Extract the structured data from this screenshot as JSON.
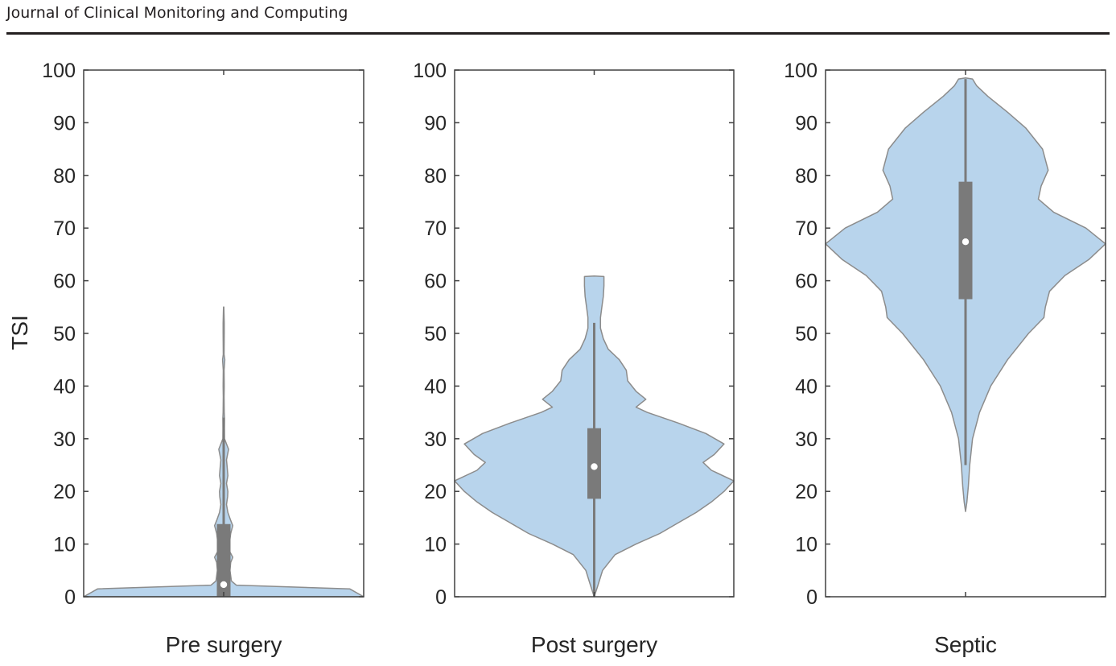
{
  "header": {
    "journal_name": "Journal of Clinical Monitoring and Computing"
  },
  "chart_data": {
    "type": "violin",
    "ylabel": "TSI",
    "ylim": [
      0,
      100
    ],
    "yticks": [
      0,
      10,
      20,
      30,
      40,
      50,
      60,
      70,
      80,
      90,
      100
    ],
    "grid": false,
    "colors": {
      "violin_fill": "#b8d4ec",
      "violin_edge": "#8c8c8c",
      "box": "#7a7a7a",
      "whisker": "#7a7a7a",
      "median_dot": "#ffffff",
      "axes": "#404040"
    },
    "groups": [
      {
        "name": "Pre surgery",
        "median": 2.3,
        "q1": 0,
        "q3": 13.8,
        "whisker_low": 0,
        "whisker_high": 34,
        "density": [
          [
            0,
            1.0
          ],
          [
            1.5,
            0.9
          ],
          [
            2.2,
            0.09
          ],
          [
            3,
            0.055
          ],
          [
            5,
            0.045
          ],
          [
            6.5,
            0.05
          ],
          [
            7.5,
            0.065
          ],
          [
            8.5,
            0.045
          ],
          [
            10,
            0.04
          ],
          [
            12,
            0.05
          ],
          [
            13.5,
            0.065
          ],
          [
            14.5,
            0.05
          ],
          [
            16,
            0.03
          ],
          [
            17.5,
            0.02
          ],
          [
            19,
            0.028
          ],
          [
            20,
            0.03
          ],
          [
            21.5,
            0.02
          ],
          [
            23,
            0.03
          ],
          [
            24.5,
            0.025
          ],
          [
            26,
            0.02
          ],
          [
            28,
            0.035
          ],
          [
            29,
            0.02
          ],
          [
            30,
            0.006
          ],
          [
            32,
            0.005
          ],
          [
            34,
            0.006
          ],
          [
            35,
            0.004
          ],
          [
            38,
            0.003
          ],
          [
            40,
            0.004
          ],
          [
            43,
            0.003
          ],
          [
            45,
            0.008
          ],
          [
            46,
            0.003
          ],
          [
            50,
            0.004
          ],
          [
            52,
            0.004
          ],
          [
            55,
            0.001
          ]
        ]
      },
      {
        "name": "Post surgery",
        "median": 24.7,
        "q1": 18.6,
        "q3": 32,
        "whisker_low": 0,
        "whisker_high": 52,
        "density": [
          [
            0,
            0.0
          ],
          [
            2,
            0.025
          ],
          [
            5,
            0.06
          ],
          [
            8,
            0.15
          ],
          [
            10,
            0.3
          ],
          [
            12,
            0.47
          ],
          [
            14,
            0.6
          ],
          [
            16,
            0.73
          ],
          [
            18,
            0.84
          ],
          [
            20,
            0.93
          ],
          [
            22,
            1.0
          ],
          [
            24,
            0.84
          ],
          [
            25.5,
            0.78
          ],
          [
            27,
            0.86
          ],
          [
            29,
            0.93
          ],
          [
            31,
            0.8
          ],
          [
            33,
            0.6
          ],
          [
            35,
            0.38
          ],
          [
            36,
            0.3
          ],
          [
            37.5,
            0.37
          ],
          [
            39,
            0.3
          ],
          [
            41,
            0.24
          ],
          [
            43,
            0.23
          ],
          [
            45,
            0.18
          ],
          [
            47,
            0.1
          ],
          [
            49,
            0.065
          ],
          [
            51,
            0.045
          ],
          [
            53,
            0.045
          ],
          [
            55,
            0.055
          ],
          [
            57,
            0.065
          ],
          [
            59,
            0.07
          ],
          [
            60.8,
            0.07
          ],
          [
            60.9,
            0.0
          ]
        ]
      },
      {
        "name": "Septic",
        "median": 67.4,
        "q1": 56.5,
        "q3": 78.8,
        "whisker_low": 25,
        "whisker_high": 98.3,
        "density": [
          [
            16.2,
            0.0
          ],
          [
            18,
            0.01
          ],
          [
            21,
            0.02
          ],
          [
            25,
            0.03
          ],
          [
            30,
            0.05
          ],
          [
            35,
            0.1
          ],
          [
            40,
            0.18
          ],
          [
            45,
            0.3
          ],
          [
            50,
            0.45
          ],
          [
            53,
            0.56
          ],
          [
            55,
            0.57
          ],
          [
            58,
            0.6
          ],
          [
            61,
            0.71
          ],
          [
            64,
            0.88
          ],
          [
            67,
            1.0
          ],
          [
            70,
            0.86
          ],
          [
            73,
            0.63
          ],
          [
            75.5,
            0.52
          ],
          [
            78,
            0.54
          ],
          [
            81,
            0.59
          ],
          [
            85,
            0.55
          ],
          [
            89,
            0.43
          ],
          [
            92,
            0.3
          ],
          [
            95,
            0.16
          ],
          [
            97,
            0.08
          ],
          [
            98.3,
            0.05
          ],
          [
            98.5,
            0.0
          ]
        ]
      }
    ]
  }
}
